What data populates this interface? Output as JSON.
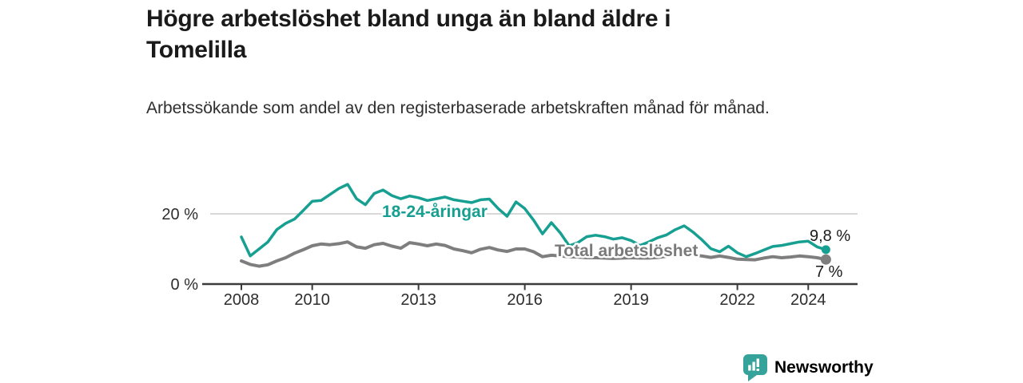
{
  "header": {
    "title": "Högre arbetslöshet bland unga än bland äldre i Tomelilla",
    "subtitle": "Arbetssökande som andel av den registerbaserade arbetskraften månad för månad."
  },
  "chart_data": {
    "type": "line",
    "title": "Högre arbetslöshet bland unga än bland äldre i Tomelilla",
    "subtitle": "Arbetssökande som andel av den registerbaserade arbetskraften månad för månad.",
    "unit": "%",
    "grid": "horizontal-20-only",
    "legend_position": "inline-labels-on-lines",
    "xlim": [
      2007.1,
      2025.4
    ],
    "ylim": [
      0,
      32
    ],
    "x_ticks": [
      2008,
      2010,
      2013,
      2016,
      2019,
      2022,
      2024
    ],
    "y_ticks": [
      {
        "value": 20,
        "label": "20 %"
      },
      {
        "value": 0,
        "label": "0 %"
      }
    ],
    "x": [
      2008.0,
      2008.25,
      2008.5,
      2008.75,
      2009.0,
      2009.25,
      2009.5,
      2009.75,
      2010.0,
      2010.25,
      2010.5,
      2010.75,
      2011.0,
      2011.25,
      2011.5,
      2011.75,
      2012.0,
      2012.25,
      2012.5,
      2012.75,
      2013.0,
      2013.25,
      2013.5,
      2013.75,
      2014.0,
      2014.25,
      2014.5,
      2014.75,
      2015.0,
      2015.25,
      2015.5,
      2015.75,
      2016.0,
      2016.25,
      2016.5,
      2016.75,
      2017.0,
      2017.25,
      2017.5,
      2017.75,
      2018.0,
      2018.25,
      2018.5,
      2018.75,
      2019.0,
      2019.25,
      2019.5,
      2019.75,
      2020.0,
      2020.25,
      2020.5,
      2020.75,
      2021.0,
      2021.25,
      2021.5,
      2021.75,
      2022.0,
      2022.25,
      2022.5,
      2022.75,
      2023.0,
      2023.25,
      2023.5,
      2023.75,
      2024.0,
      2024.25,
      2024.5
    ],
    "series": [
      {
        "name": "18-24-åringar",
        "color": "#17a092",
        "end_label": "9,8 %",
        "end_value": 9.8,
        "values": [
          13.4,
          8.0,
          10.0,
          12.0,
          15.5,
          17.3,
          18.5,
          21.0,
          23.6,
          23.8,
          25.5,
          27.2,
          28.4,
          24.3,
          22.6,
          25.8,
          26.8,
          25.2,
          24.3,
          25.1,
          24.6,
          23.8,
          24.3,
          24.8,
          24.0,
          23.6,
          23.2,
          24.0,
          24.2,
          21.5,
          19.3,
          23.4,
          21.5,
          18.2,
          14.3,
          17.5,
          14.6,
          10.9,
          11.8,
          13.5,
          13.9,
          13.5,
          12.8,
          13.2,
          12.4,
          11.0,
          12.0,
          13.2,
          14.0,
          15.5,
          16.6,
          14.8,
          12.6,
          10.1,
          9.2,
          10.8,
          8.9,
          7.8,
          8.7,
          9.7,
          10.7,
          11.0,
          11.5,
          12.0,
          12.2,
          10.6,
          9.8
        ]
      },
      {
        "name": "Total arbetslöshet",
        "color": "#7e7e7e",
        "end_label": "7 %",
        "end_value": 7.0,
        "values": [
          6.6,
          5.6,
          5.1,
          5.5,
          6.6,
          7.5,
          8.8,
          9.8,
          10.9,
          11.4,
          11.2,
          11.5,
          12.0,
          10.6,
          10.2,
          11.2,
          11.6,
          10.8,
          10.2,
          11.8,
          11.4,
          10.9,
          11.4,
          11.0,
          10.0,
          9.5,
          8.9,
          9.9,
          10.4,
          9.7,
          9.3,
          10.0,
          10.0,
          9.2,
          7.8,
          8.2,
          8.0,
          7.8,
          7.7,
          7.5,
          7.5,
          7.4,
          7.3,
          7.4,
          7.5,
          7.4,
          7.4,
          7.6,
          7.9,
          8.4,
          8.6,
          8.3,
          8.0,
          7.6,
          8.0,
          7.6,
          7.1,
          7.0,
          6.9,
          7.4,
          7.8,
          7.5,
          7.7,
          8.0,
          7.8,
          7.5,
          7.0
        ]
      }
    ]
  },
  "footer": {
    "brand": "Newsworthy",
    "brand_color": "#36a39a"
  }
}
